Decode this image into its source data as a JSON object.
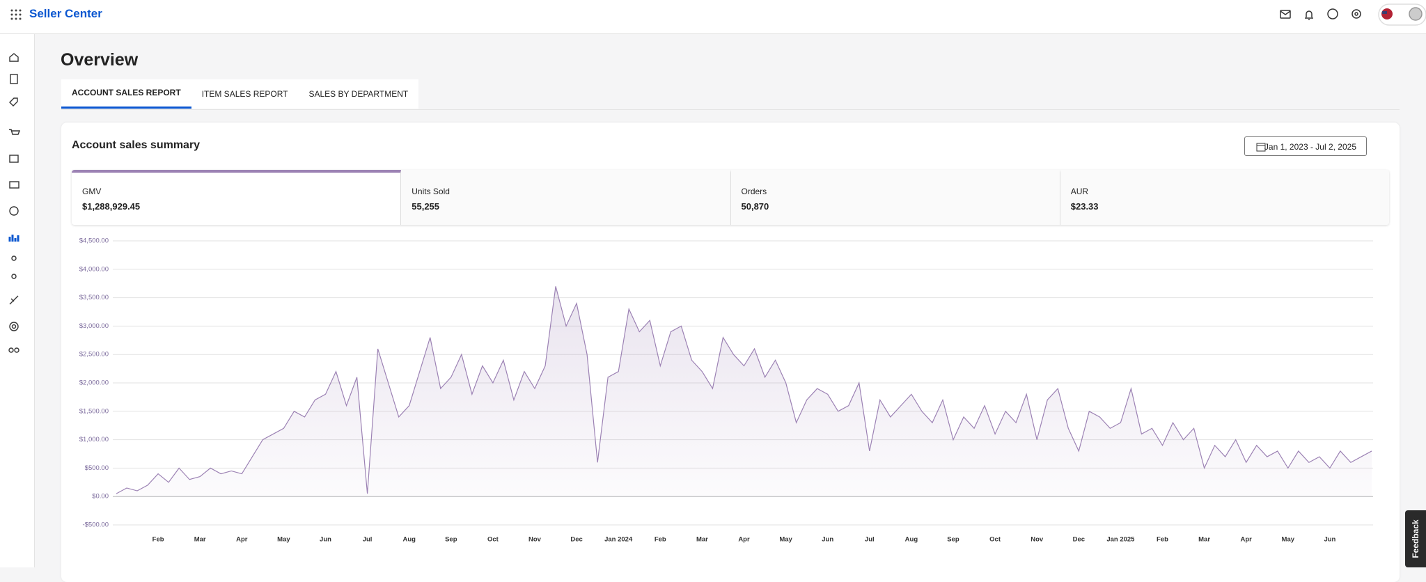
{
  "header": {
    "brand": "Seller Center"
  },
  "page": {
    "title": "Overview",
    "tabs": [
      "ACCOUNT SALES REPORT",
      "ITEM SALES REPORT",
      "SALES BY DEPARTMENT"
    ]
  },
  "summary": {
    "title": "Account sales summary",
    "date_range": "Jan 1, 2023 - Jul 2, 2025",
    "metrics": [
      {
        "label": "GMV",
        "value": "$1,288,929.45"
      },
      {
        "label": "Units Sold",
        "value": "55,255"
      },
      {
        "label": "Orders",
        "value": "50,870"
      },
      {
        "label": "AUR",
        "value": "$23.33"
      }
    ]
  },
  "feedback": "Feedback",
  "chart_data": {
    "type": "line",
    "categories": [
      null,
      null,
      null,
      null,
      "Feb",
      null,
      null,
      null,
      "Mar",
      null,
      null,
      null,
      "Apr",
      null,
      null,
      null,
      "May",
      null,
      null,
      null,
      "Jun",
      null,
      null,
      null,
      "Jul",
      null,
      null,
      null,
      "Aug",
      null,
      null,
      null,
      "Sep",
      null,
      null,
      null,
      "Oct",
      null,
      null,
      null,
      "Nov",
      null,
      null,
      null,
      "Dec",
      null,
      null,
      null,
      "Jan 2024",
      null,
      null,
      null,
      "Feb",
      null,
      null,
      null,
      "Mar",
      null,
      null,
      null,
      "Apr",
      null,
      null,
      null,
      "May",
      null,
      null,
      null,
      "Jun",
      null,
      null,
      null,
      "Jul",
      null,
      null,
      null,
      "Aug",
      null,
      null,
      null,
      "Sep",
      null,
      null,
      null,
      "Oct",
      null,
      null,
      null,
      "Nov",
      null,
      null,
      null,
      "Dec",
      null,
      null,
      null,
      "Jan 2025",
      null,
      null,
      null,
      "Feb",
      null,
      null,
      null,
      "Mar",
      null,
      null,
      null,
      "Apr",
      null,
      null,
      null,
      "May",
      null,
      null,
      null,
      "Jun",
      null,
      null,
      null,
      null
    ],
    "series": [
      {
        "color": "#9c82b4",
        "values": [
          50,
          150,
          100,
          200,
          400,
          250,
          500,
          300,
          350,
          500,
          400,
          450,
          400,
          700,
          1000,
          1100,
          1200,
          1500,
          1400,
          1700,
          1800,
          2200,
          1600,
          2100,
          50,
          2600,
          2000,
          1400,
          1600,
          2200,
          2800,
          1900,
          2100,
          2500,
          1800,
          2300,
          2000,
          2400,
          1700,
          2200,
          1900,
          2300,
          3700,
          3000,
          3400,
          2500,
          600,
          2100,
          2200,
          3300,
          2900,
          3100,
          2300,
          2900,
          3000,
          2400,
          2200,
          1900,
          2800,
          2500,
          2300,
          2600,
          2100,
          2400,
          2000,
          1300,
          1700,
          1900,
          1800,
          1500,
          1600,
          2000,
          800,
          1700,
          1400,
          1600,
          1800,
          1500,
          1300,
          1700,
          1000,
          1400,
          1200,
          1600,
          1100,
          1500,
          1300,
          1800,
          1000,
          1700,
          1900,
          1200,
          800,
          1500,
          1400,
          1200,
          1300,
          1900,
          1100,
          1200,
          900,
          1300,
          1000,
          1200,
          500,
          900,
          700,
          1000,
          600,
          900,
          700,
          800,
          500,
          800,
          600,
          700,
          500,
          800,
          600,
          700,
          800
        ]
      }
    ],
    "ylim": [
      -500,
      4500
    ],
    "yticks": [
      {
        "value": -500,
        "label": "-$500.00"
      },
      {
        "value": 0,
        "label": "$0.00"
      },
      {
        "value": 500,
        "label": "$500.00"
      },
      {
        "value": 1000,
        "label": "$1,000.00"
      },
      {
        "value": 1500,
        "label": "$1,500.00"
      },
      {
        "value": 2000,
        "label": "$2,000.00"
      },
      {
        "value": 2500,
        "label": "$2,500.00"
      },
      {
        "value": 3000,
        "label": "$3,000.00"
      },
      {
        "value": 3500,
        "label": "$3,500.00"
      },
      {
        "value": 4000,
        "label": "$4,000.00"
      },
      {
        "value": 4500,
        "label": "$4,500.00"
      }
    ],
    "grid": true
  }
}
